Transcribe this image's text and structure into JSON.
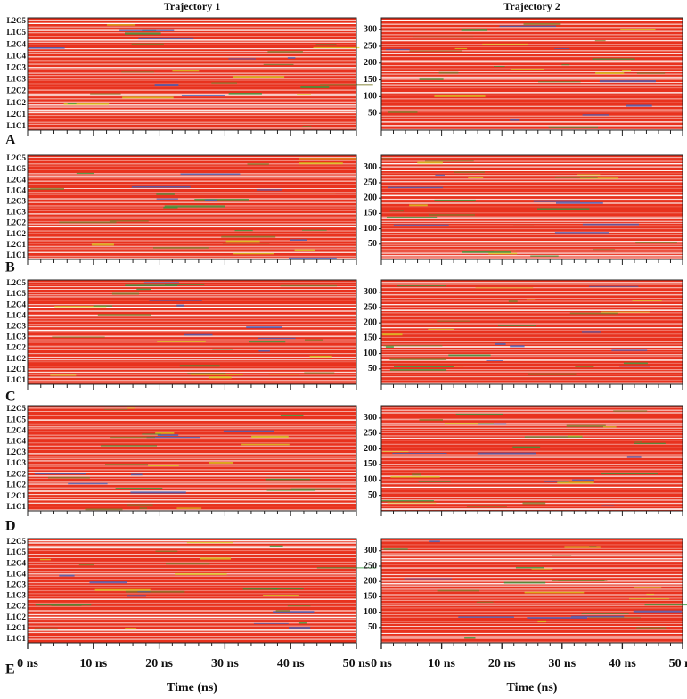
{
  "chart_data": [
    {
      "type": "heatmap",
      "panel": "A",
      "title": "Trajectory 1",
      "categories": [
        "L1C1",
        "L2C1",
        "L1C2",
        "L2C2",
        "L1C3",
        "L2C3",
        "L1C4",
        "L2C4",
        "L1C5",
        "L2C5"
      ],
      "xlim": [
        0,
        50
      ],
      "color": "#e8321e"
    },
    {
      "type": "heatmap",
      "title": "Trajectory 2",
      "ylim": [
        0,
        335
      ],
      "yticks": [
        50,
        100,
        150,
        200,
        250,
        300
      ],
      "xlim": [
        0,
        50
      ],
      "color": "#e8321e"
    },
    {
      "type": "heatmap",
      "panel": "B",
      "categories": [
        "L1C1",
        "L2C1",
        "L1C2",
        "L2C2",
        "L1C3",
        "L2C3",
        "L1C4",
        "L2C4",
        "L1C5",
        "L2C5"
      ],
      "xlim": [
        0,
        50
      ],
      "color": "#e8321e"
    },
    {
      "type": "heatmap",
      "ylim": [
        0,
        340
      ],
      "yticks": [
        50,
        100,
        150,
        200,
        250,
        300
      ],
      "xlim": [
        0,
        50
      ],
      "color": "#e8321e"
    },
    {
      "type": "heatmap",
      "panel": "C",
      "categories": [
        "L1C1",
        "L2C1",
        "L1C2",
        "L2C2",
        "L1C3",
        "L2C3",
        "L1C4",
        "L2C4",
        "L1C5",
        "L2C5"
      ],
      "xlim": [
        0,
        50
      ],
      "color": "#e8321e"
    },
    {
      "type": "heatmap",
      "ylim": [
        0,
        340
      ],
      "yticks": [
        50,
        100,
        150,
        200,
        250,
        300
      ],
      "xlim": [
        0,
        50
      ],
      "color": "#e8321e"
    },
    {
      "type": "heatmap",
      "panel": "D",
      "categories": [
        "L1C1",
        "L2C1",
        "L1C2",
        "L2C2",
        "L1C3",
        "L2C3",
        "L1C4",
        "L2C4",
        "L1C5",
        "L2C5"
      ],
      "xlim": [
        0,
        50
      ],
      "color": "#e8321e"
    },
    {
      "type": "heatmap",
      "ylim": [
        0,
        340
      ],
      "yticks": [
        50,
        100,
        150,
        200,
        250,
        300
      ],
      "xlim": [
        0,
        50
      ],
      "color": "#e8321e"
    },
    {
      "type": "heatmap",
      "panel": "E",
      "categories": [
        "L1C1",
        "L2C1",
        "L1C2",
        "L2C2",
        "L1C3",
        "L2C3",
        "L1C4",
        "L2C4",
        "L1C5",
        "L2C5"
      ],
      "xlim": [
        0,
        50
      ],
      "xticks": [
        {
          "value": 0,
          "label": "0 ns"
        },
        {
          "value": 10,
          "label": "10 ns"
        },
        {
          "value": 20,
          "label": "20 ns"
        },
        {
          "value": 30,
          "label": "30 ns"
        },
        {
          "value": 40,
          "label": "40 ns"
        },
        {
          "value": 50,
          "label": "50 ns"
        }
      ],
      "xlabel": "Time (ns)",
      "color": "#e8321e"
    },
    {
      "type": "heatmap",
      "ylim": [
        0,
        340
      ],
      "yticks": [
        50,
        100,
        150,
        200,
        250,
        300
      ],
      "xlim": [
        0,
        50
      ],
      "xticks": [
        {
          "value": 0,
          "label": "0 ns"
        },
        {
          "value": 10,
          "label": "10 ns"
        },
        {
          "value": 20,
          "label": "20 ns"
        },
        {
          "value": 30,
          "label": "30 ns"
        },
        {
          "value": 40,
          "label": "40 ns"
        },
        {
          "value": 50,
          "label": "50 ns"
        }
      ],
      "xlabel": "Time (ns)",
      "color": "#e8321e"
    }
  ]
}
